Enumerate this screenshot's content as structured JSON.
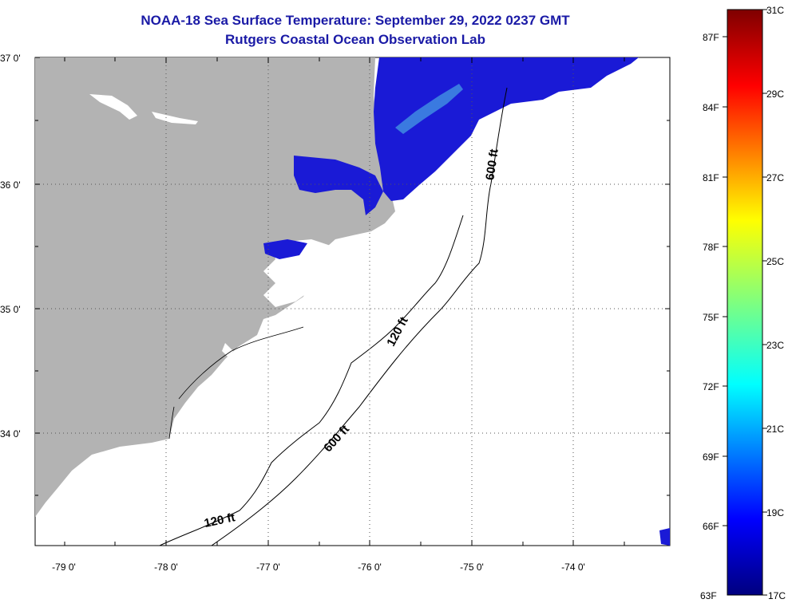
{
  "title": {
    "line1": "NOAA-18 Sea Surface Temperature:  September 29, 2022 0237 GMT",
    "line2": "Rutgers Coastal Ocean Observation Lab"
  },
  "axes": {
    "lat_labels": [
      "37 0'",
      "36 0'",
      "35 0'",
      "34 0'"
    ],
    "lon_labels": [
      "-79 0'",
      "-78 0'",
      "-77 0'",
      "-76 0'",
      "-75 0'",
      "-74 0'"
    ]
  },
  "contours": {
    "c120_a": "120 ft",
    "c120_b": "120 ft",
    "c600_a": "600 ft",
    "c600_b": "600 ft"
  },
  "colorbar": {
    "fahrenheit": [
      "87F",
      "84F",
      "81F",
      "78F",
      "75F",
      "72F",
      "69F",
      "66F",
      "63F"
    ],
    "celsius": [
      "31C",
      "29C",
      "27C",
      "25C",
      "23C",
      "21C",
      "19C",
      "17C"
    ]
  },
  "colors": {
    "land": "#b3b3b3",
    "title": "#1a1aa6",
    "cold_sst": "#1a1ad6"
  }
}
